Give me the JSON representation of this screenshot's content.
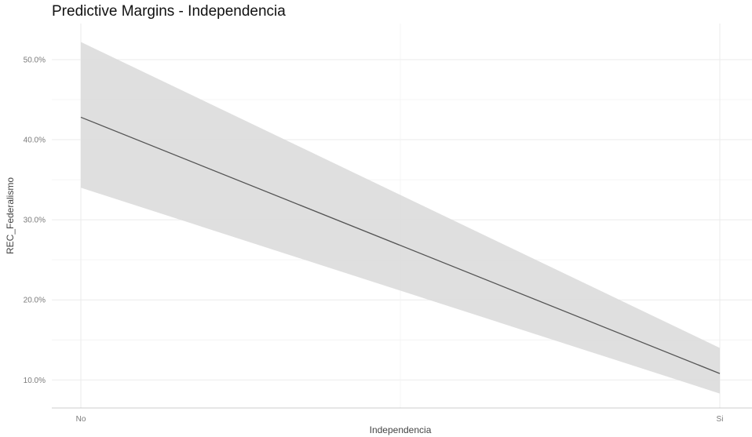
{
  "chart_data": {
    "type": "line",
    "title": "Predictive Margins - Independencia",
    "xlabel": "Independencia",
    "ylabel": "REC_Federalismo",
    "categories": [
      "No",
      "Si"
    ],
    "series": [
      {
        "values": [
          0.428,
          0.108
        ],
        "ci_lower": [
          0.34,
          0.083
        ],
        "ci_upper": [
          0.522,
          0.14
        ]
      }
    ],
    "y_ticks": [
      0.1,
      0.2,
      0.3,
      0.4,
      0.5
    ],
    "y_tick_labels": [
      "10.0%",
      "20.0%",
      "30.0%",
      "40.0%",
      "50.0%"
    ],
    "ylim": [
      0.065,
      0.545
    ],
    "grid": true,
    "legend": "none",
    "colors": {
      "line": "#555555",
      "ribbon": "#dcdcdc",
      "grid_major": "#ebebeb",
      "grid_minor": "#f4f4f4",
      "axis_line": "#cccccc"
    }
  }
}
